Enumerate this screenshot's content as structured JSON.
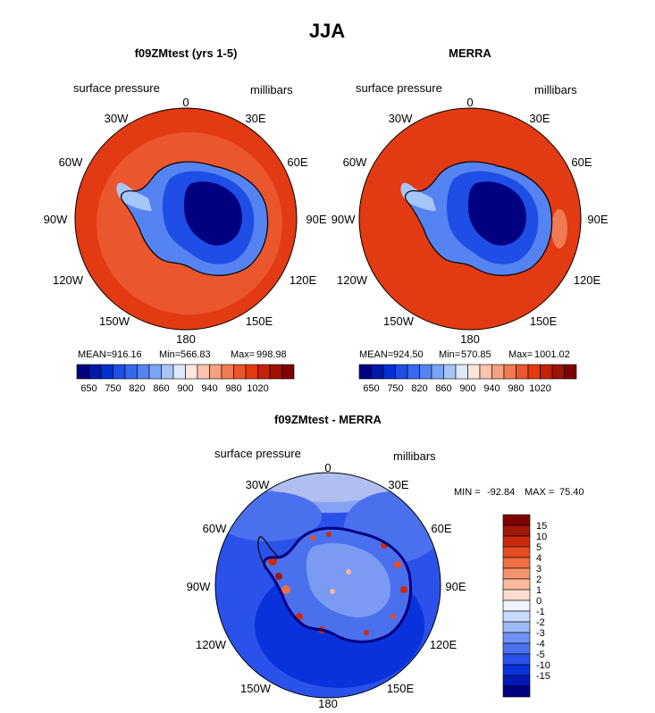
{
  "title": "JJA",
  "colors": {
    "pressure_scale": [
      "#000080",
      "#0018a8",
      "#0030d0",
      "#1e4ee6",
      "#3868ee",
      "#5584f2",
      "#7aa4f5",
      "#a7c6f8",
      "#dde9fa",
      "#fde6dc",
      "#f9c3ad",
      "#f5a07e",
      "#f07a52",
      "#ea562d",
      "#e23a12",
      "#c42208",
      "#9c1205",
      "#800000"
    ],
    "diff_scale": [
      "#000080",
      "#0018b4",
      "#0a32dc",
      "#2a52ea",
      "#4a70ee",
      "#6e90f2",
      "#9cb8f6",
      "#c8dafa",
      "#eef3fc",
      "#fcdcd0",
      "#f8b89c",
      "#f4946e",
      "#ee7044",
      "#e84c22",
      "#cc2a0c",
      "#a01806",
      "#800000"
    ],
    "land_mask": "#ffffff",
    "coast": "#000000"
  },
  "panels": [
    {
      "id": "model",
      "title": "f09ZMtest (yrs 1-5)",
      "left_label": "surface pressure",
      "right_label": "millibars",
      "stats": {
        "mean_label": "MEAN=",
        "mean": "916.16",
        "min_label": "Min=",
        "min": "566.83",
        "max_label": "Max=",
        "max": "998.98"
      },
      "colorbar_labels": [
        "650",
        "750",
        "820",
        "860",
        "900",
        "940",
        "980",
        "1020"
      ]
    },
    {
      "id": "obs",
      "title": "MERRA",
      "left_label": "surface pressure",
      "right_label": "millibars",
      "stats": {
        "mean_label": "MEAN=",
        "mean": "924.50",
        "min_label": "Min=",
        "min": "570.85",
        "max_label": "Max=",
        "max": "1001.02"
      },
      "colorbar_labels": [
        "650",
        "750",
        "820",
        "860",
        "900",
        "940",
        "980",
        "1020"
      ]
    },
    {
      "id": "diff",
      "title": "f09ZMtest - MERRA",
      "left_label": "surface pressure",
      "right_label": "millibars",
      "minmax": {
        "min_label": "MIN =",
        "min": "-92.84",
        "max_label": "MAX =",
        "max": "75.40"
      },
      "colorbar_labels": [
        "15",
        "10",
        "5",
        "4",
        "3",
        "2",
        "1",
        "0",
        "-1",
        "-2",
        "-3",
        "-4",
        "-5",
        "-10",
        "-15"
      ]
    }
  ],
  "longitude_labels": {
    "lon0": "0",
    "lon30e": "30E",
    "lon60e": "60E",
    "lon90e": "90E",
    "lon120e": "120E",
    "lon150e": "150E",
    "lon180": "180",
    "lon150w": "150W",
    "lon120w": "120W",
    "lon90w": "90W",
    "lon60w": "60W",
    "lon30w": "30W"
  }
}
